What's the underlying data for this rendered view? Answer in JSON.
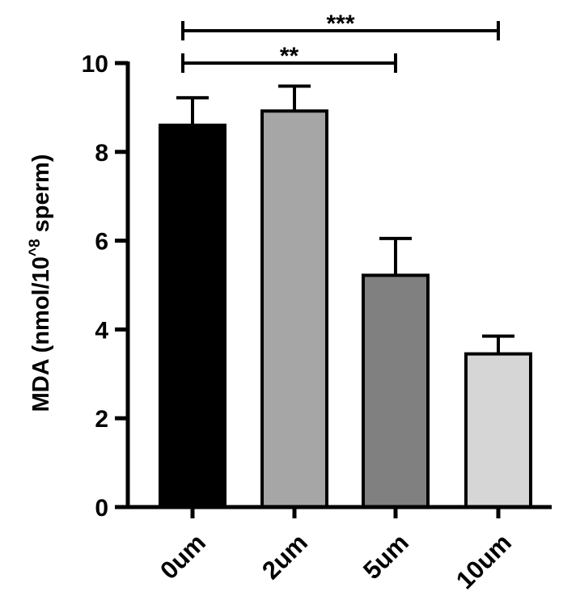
{
  "chart_data": {
    "type": "bar",
    "ylabel_main": "MDA (nmol/10",
    "ylabel_sup": "^8",
    "ylabel_tail": " sperm)",
    "ylim": [
      0,
      10
    ],
    "yticks": [
      0,
      2,
      4,
      6,
      8,
      10
    ],
    "ytick_labels": [
      "0",
      "2",
      "4",
      "6",
      "8",
      "10"
    ],
    "categories": [
      "0um",
      "2um",
      "5um",
      "10um"
    ],
    "values": [
      8.6,
      8.92,
      5.22,
      3.45
    ],
    "errors": [
      0.62,
      0.56,
      0.83,
      0.4
    ],
    "colors": [
      "#000000",
      "#a6a6a6",
      "#808080",
      "#d6d6d6"
    ],
    "significance": [
      {
        "from": 0,
        "to": 3,
        "label": "***"
      },
      {
        "from": 0,
        "to": 2,
        "label": "**"
      }
    ],
    "grid": false,
    "legend": "none"
  }
}
